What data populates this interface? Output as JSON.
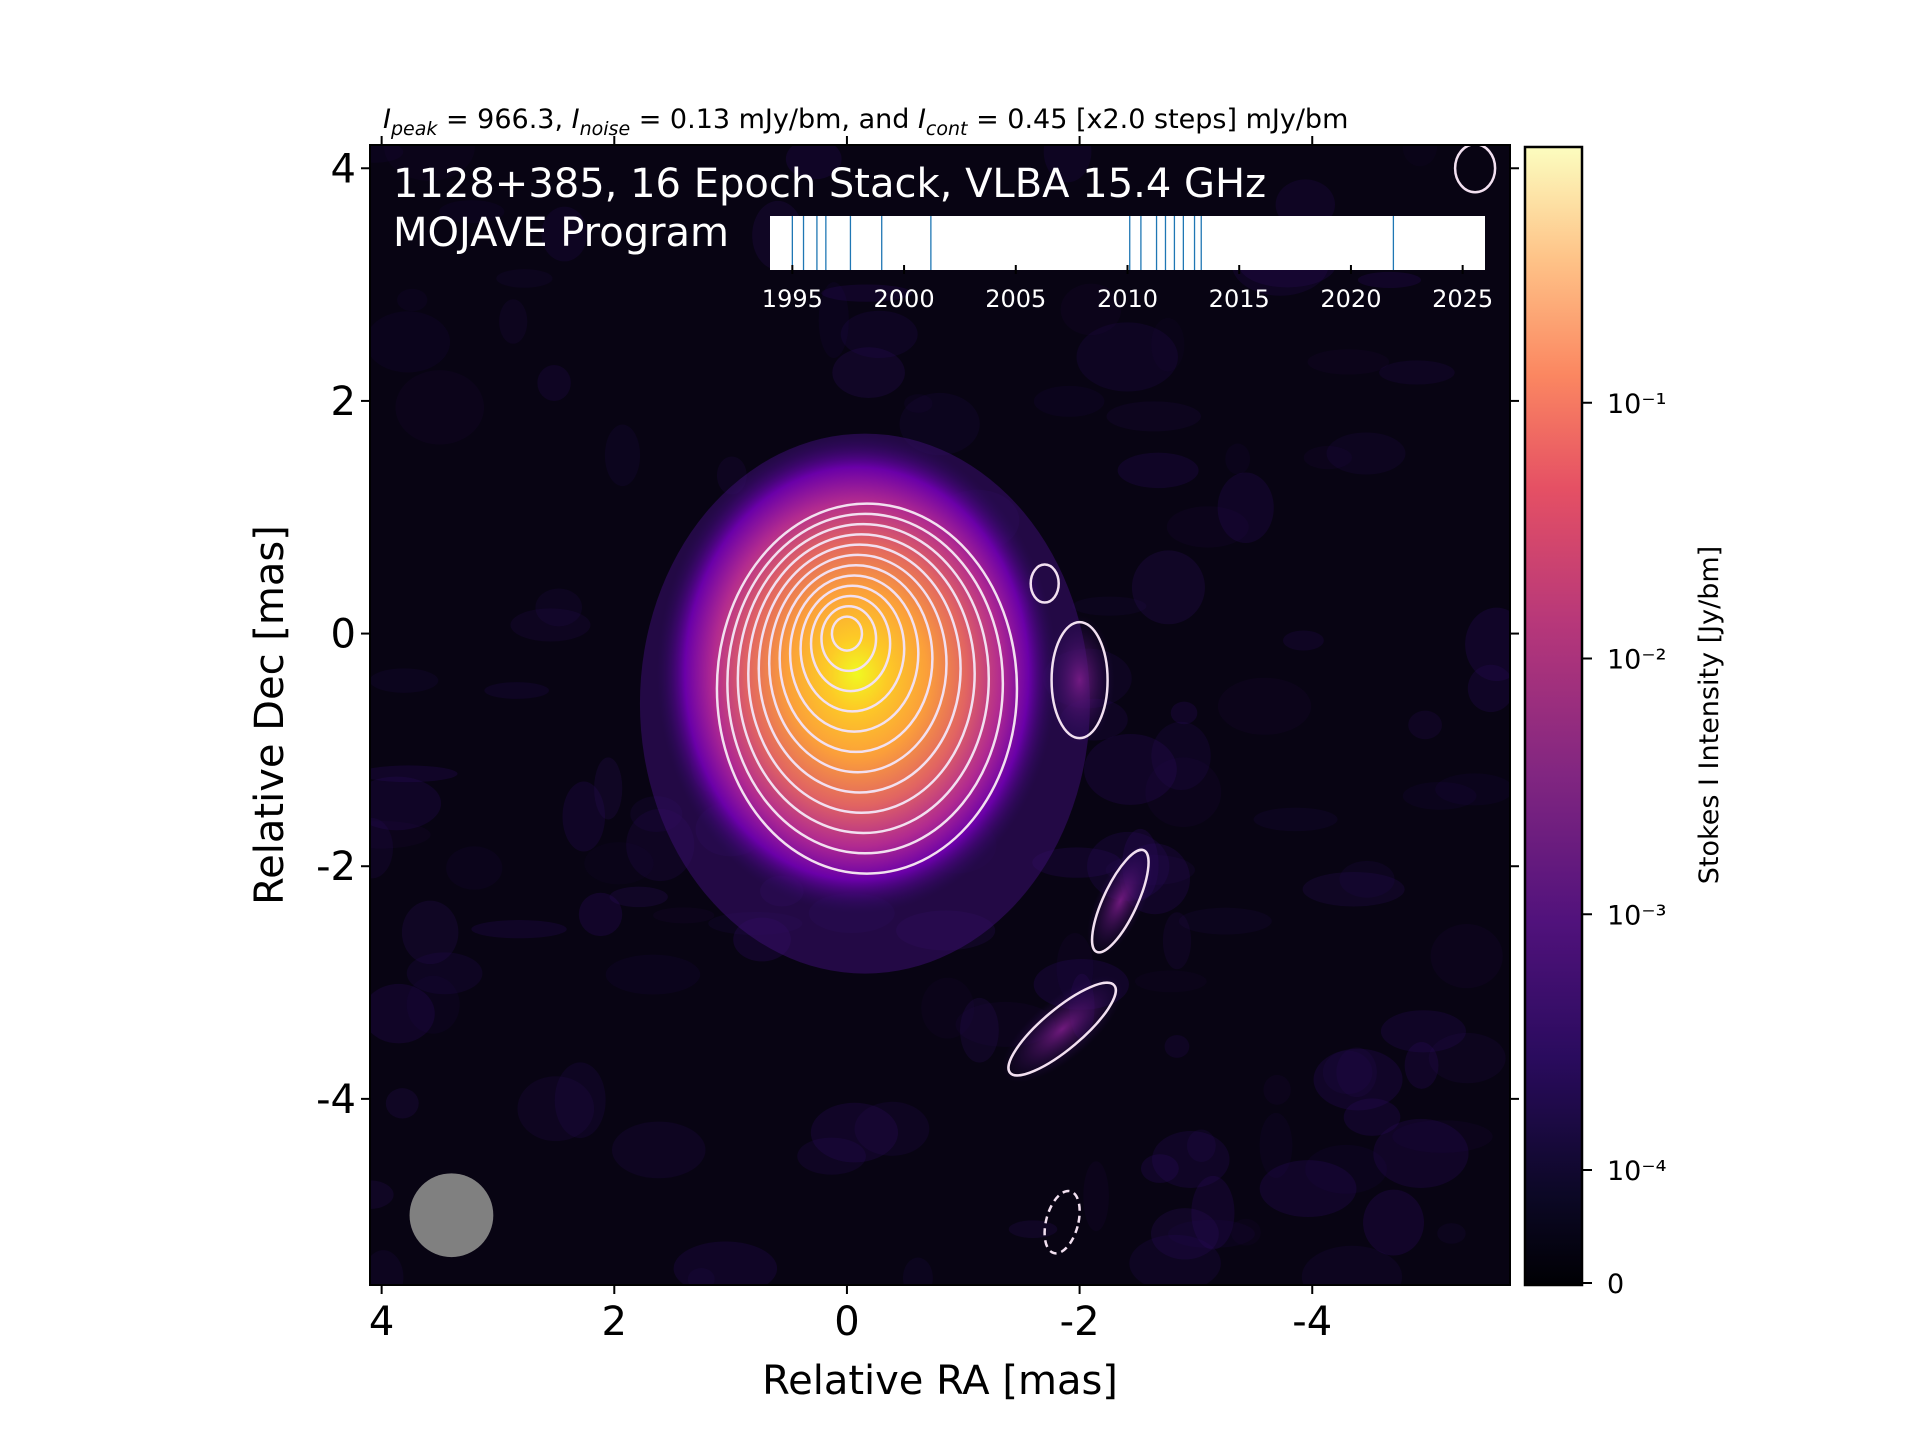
{
  "chart_data": {
    "type": "heatmap",
    "title": "I_peak = 966.3, I_noise = 0.13 mJy/bm, and I_cont = 0.45 [x2.0 steps] mJy/bm",
    "title_parts": {
      "peak_label": "I",
      "peak_sub": "peak",
      "peak_value": " = 966.3, ",
      "noise_label": "I",
      "noise_sub": "noise",
      "noise_value": " = 0.13 mJy/bm, and ",
      "cont_label": "I",
      "cont_sub": "cont",
      "cont_value": " = 0.45 [x2.0 steps] mJy/bm"
    },
    "overlay_text": [
      "1128+385, 16 Epoch Stack, VLBA 15.4 GHz",
      "MOJAVE Program"
    ],
    "xlabel": "Relative RA [mas]",
    "ylabel": "Relative Dec [mas]",
    "x_ticks": [
      "4",
      "2",
      "0",
      "-2",
      "-4"
    ],
    "x_tick_values": [
      4,
      2,
      0,
      -2,
      -4
    ],
    "y_ticks": [
      "4",
      "2",
      "0",
      "-2",
      "-4"
    ],
    "y_tick_values": [
      4,
      2,
      0,
      -2,
      -4
    ],
    "xlim": [
      4.1,
      -5.7
    ],
    "ylim": [
      -5.6,
      4.2
    ],
    "colormap": "plasma",
    "colorbar": {
      "label": "Stokes I Intensity [Jy/bm]",
      "scale": "log",
      "ticks": [
        {
          "label": "10⁻¹",
          "value": 0.1
        },
        {
          "label": "10⁻²",
          "value": 0.01
        },
        {
          "label": "10⁻³",
          "value": 0.001
        },
        {
          "label": "10⁻⁴",
          "value": 0.0001
        },
        {
          "label": "0",
          "value": 0
        }
      ]
    },
    "peak_intensity_mjy": 966.3,
    "noise_mjy": 0.13,
    "lowest_contour_mjy": 0.45,
    "contour_step": 2.0,
    "core_position": [
      0,
      0
    ],
    "beam": {
      "ra": 3.4,
      "dec": -5.0,
      "diameter_mas": 0.72,
      "color": "#808080"
    },
    "epoch_timeline": {
      "ticks": [
        "1995",
        "2000",
        "2005",
        "2010",
        "2015",
        "2020",
        "2025"
      ],
      "tick_values": [
        1995,
        2000,
        2005,
        2010,
        2015,
        2020,
        2025
      ],
      "range": [
        1994.0,
        2026.0
      ],
      "epochs": [
        1995.0,
        1995.5,
        1996.1,
        1996.5,
        1997.6,
        1999.0,
        2001.2,
        2010.1,
        2010.6,
        2011.3,
        2011.7,
        2012.1,
        2012.5,
        2013.0,
        2013.3,
        2021.9
      ],
      "line_color": "#1f77b4"
    },
    "contour_color": "#f2e0f0"
  }
}
